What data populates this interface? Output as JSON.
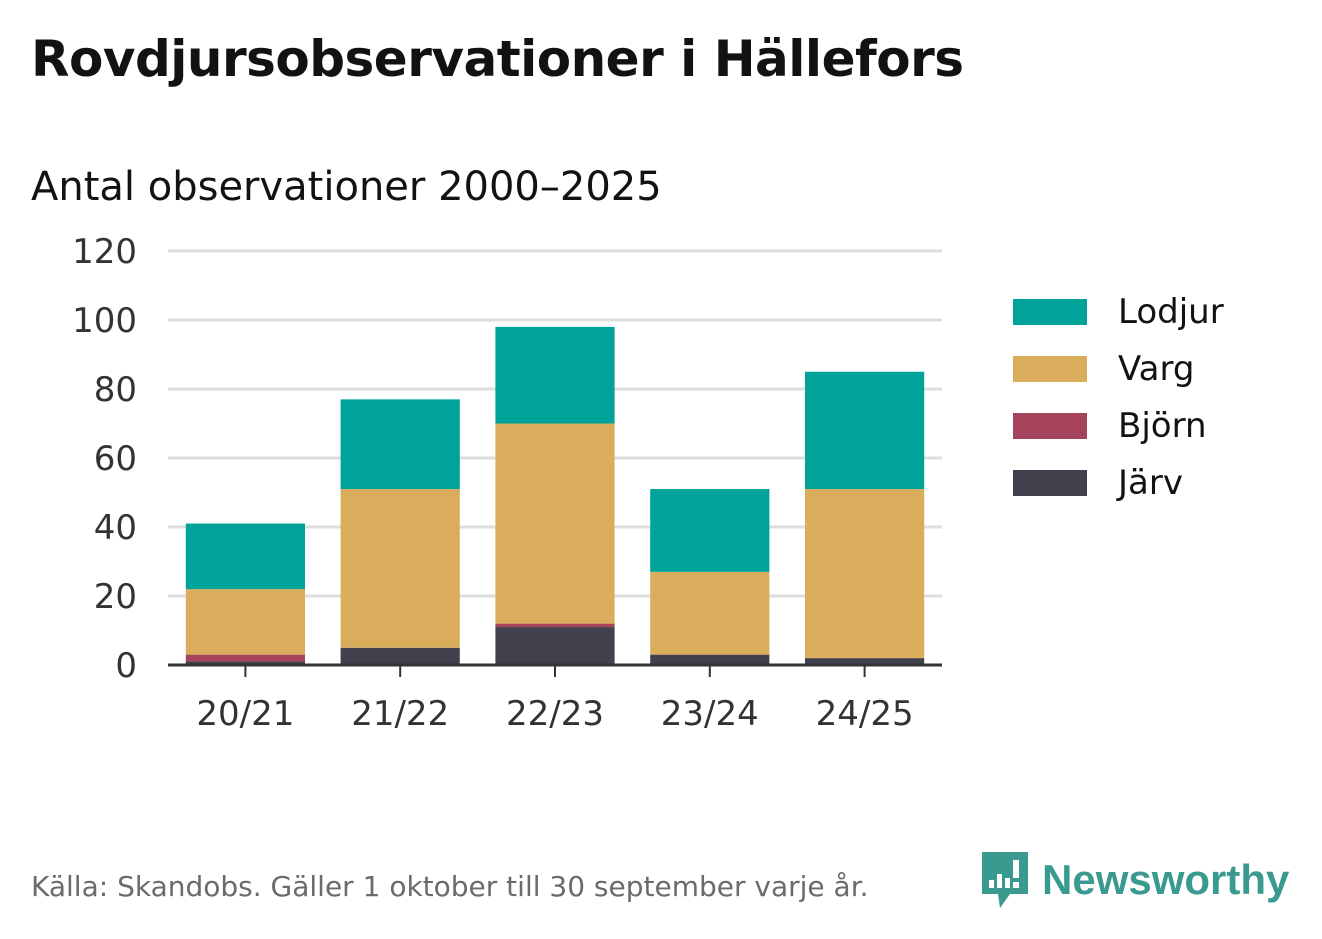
{
  "header": {
    "title": "Rovdjursobservationer i Hällefors",
    "subtitle": "Antal observationer 2000–2025"
  },
  "footer": {
    "source": "Källa: Skandobs. Gäller 1 oktober till 30 september varje år.",
    "brand": "Newsworthy",
    "brand_icon": "newsworthy-logo-icon",
    "brand_color": "#3a9a8f"
  },
  "chart_data": {
    "type": "bar",
    "stacked": true,
    "categories": [
      "20/21",
      "21/22",
      "22/23",
      "23/24",
      "24/25"
    ],
    "series": [
      {
        "name": "Järv",
        "color": "#42404d",
        "values": [
          1,
          5,
          11,
          3,
          2
        ]
      },
      {
        "name": "Björn",
        "color": "#a5435c",
        "values": [
          2,
          0,
          1,
          0,
          0
        ]
      },
      {
        "name": "Varg",
        "color": "#d9ad5c",
        "values": [
          19,
          46,
          58,
          24,
          49
        ]
      },
      {
        "name": "Lodjur",
        "color": "#00a39a",
        "values": [
          19,
          26,
          28,
          24,
          34
        ]
      }
    ],
    "legend_order": [
      "Lodjur",
      "Varg",
      "Björn",
      "Järv"
    ],
    "ylim": [
      0,
      120
    ],
    "yticks": [
      0,
      20,
      40,
      60,
      80,
      100,
      120
    ],
    "grid": true,
    "legend_position": "right"
  }
}
